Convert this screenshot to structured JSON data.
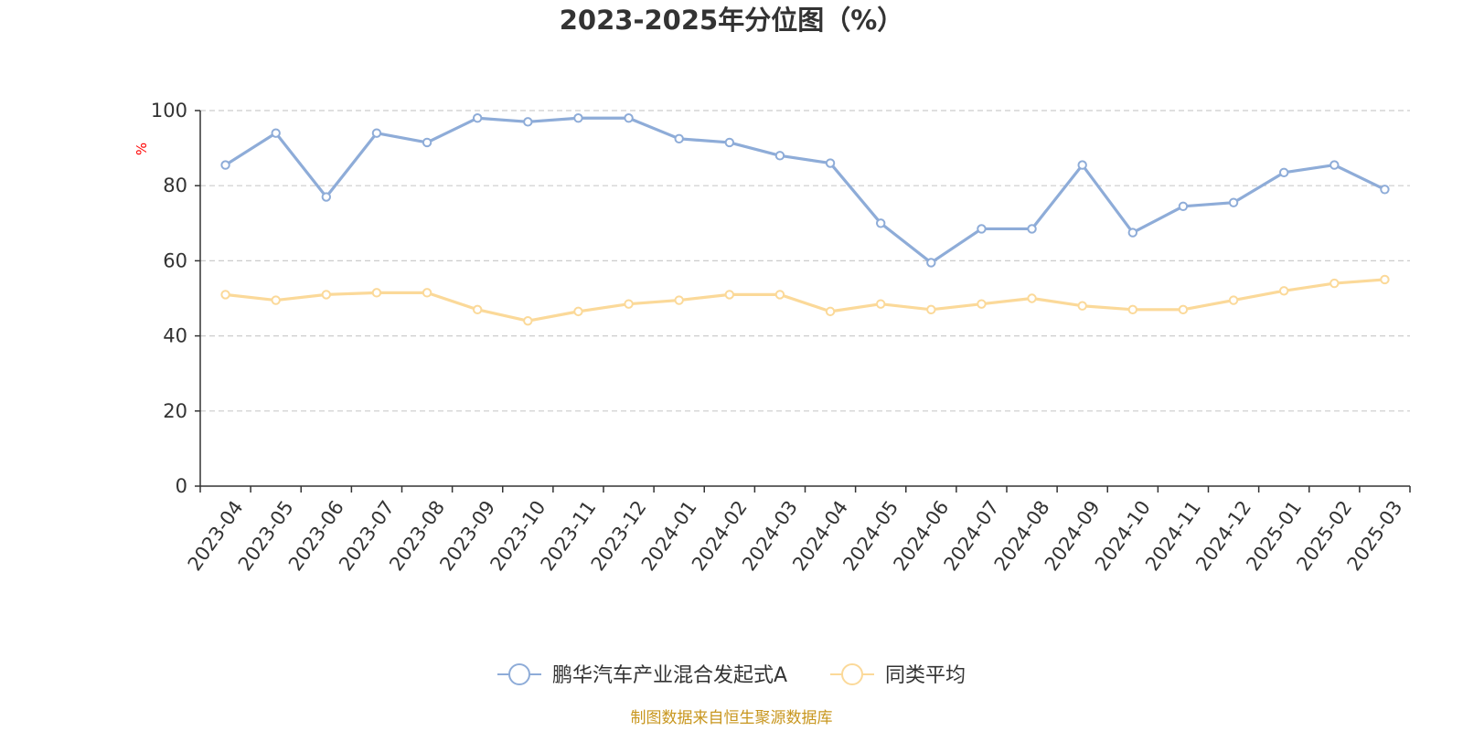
{
  "chart_data": {
    "type": "line",
    "title": "2023-2025年分位图（%）",
    "ylabel": "%",
    "ylim": [
      0,
      100
    ],
    "yticks": [
      "0",
      "20",
      "40",
      "60",
      "80",
      "100"
    ],
    "grid": true,
    "legend_position": "bottom-center",
    "categories": [
      "2023-04",
      "2023-05",
      "2023-06",
      "2023-07",
      "2023-08",
      "2023-09",
      "2023-10",
      "2023-11",
      "2023-12",
      "2024-01",
      "2024-02",
      "2024-03",
      "2024-04",
      "2024-05",
      "2024-06",
      "2024-07",
      "2024-08",
      "2024-09",
      "2024-10",
      "2024-11",
      "2024-12",
      "2025-01",
      "2025-02",
      "2025-03"
    ],
    "series": [
      {
        "name": "鹏华汽车产业混合发起式A",
        "color": "#8eacd8",
        "values": [
          85.5,
          94,
          77,
          94,
          91.5,
          98,
          97,
          98,
          98,
          92.5,
          91.5,
          88,
          86,
          70,
          59.5,
          68.5,
          68.5,
          85.5,
          67.5,
          74.5,
          75.5,
          83.5,
          85.5,
          79
        ]
      },
      {
        "name": "同类平均",
        "color": "#fbd999",
        "values": [
          51,
          49.5,
          51,
          51.5,
          51.5,
          47,
          44,
          46.5,
          48.5,
          49.5,
          51,
          51,
          46.5,
          48.5,
          47,
          48.5,
          50,
          48,
          47,
          47,
          49.5,
          52,
          54,
          55
        ]
      }
    ]
  },
  "source": "制图数据来自恒生聚源数据库",
  "colors": {
    "axis": "#333333",
    "grid": "#cccccc",
    "ylabel": "#ff0000",
    "source": "#c8961e"
  }
}
